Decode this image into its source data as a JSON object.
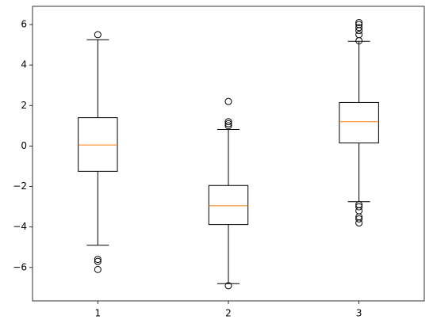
{
  "chart_data": {
    "type": "boxplot",
    "categories": [
      "1",
      "2",
      "3"
    ],
    "boxes": [
      {
        "whislo": -4.9,
        "q1": -1.25,
        "med": 0.05,
        "q3": 1.4,
        "whishi": 5.25,
        "fliers": [
          5.5,
          -5.6,
          -5.7,
          -6.1
        ]
      },
      {
        "whislo": -6.8,
        "q1": -3.88,
        "med": -2.95,
        "q3": -1.95,
        "whishi": 0.82,
        "fliers": [
          2.2,
          1.2,
          1.1,
          1.0,
          -6.9
        ]
      },
      {
        "whislo": -2.75,
        "q1": 0.15,
        "med": 1.2,
        "q3": 2.15,
        "whishi": 5.17,
        "fliers": [
          5.2,
          5.5,
          5.7,
          5.85,
          6.0,
          6.1,
          -2.9,
          -3.0,
          -3.2,
          -3.5,
          -3.6,
          -3.8
        ]
      }
    ],
    "box_color": "#000000",
    "median_color": "#ff7f0e",
    "ylim": [
      -7.65,
      6.9
    ],
    "yticks": [
      {
        "value": -6,
        "label": "−6"
      },
      {
        "value": -4,
        "label": "−4"
      },
      {
        "value": -2,
        "label": "−2"
      },
      0,
      2,
      4,
      6
    ]
  }
}
